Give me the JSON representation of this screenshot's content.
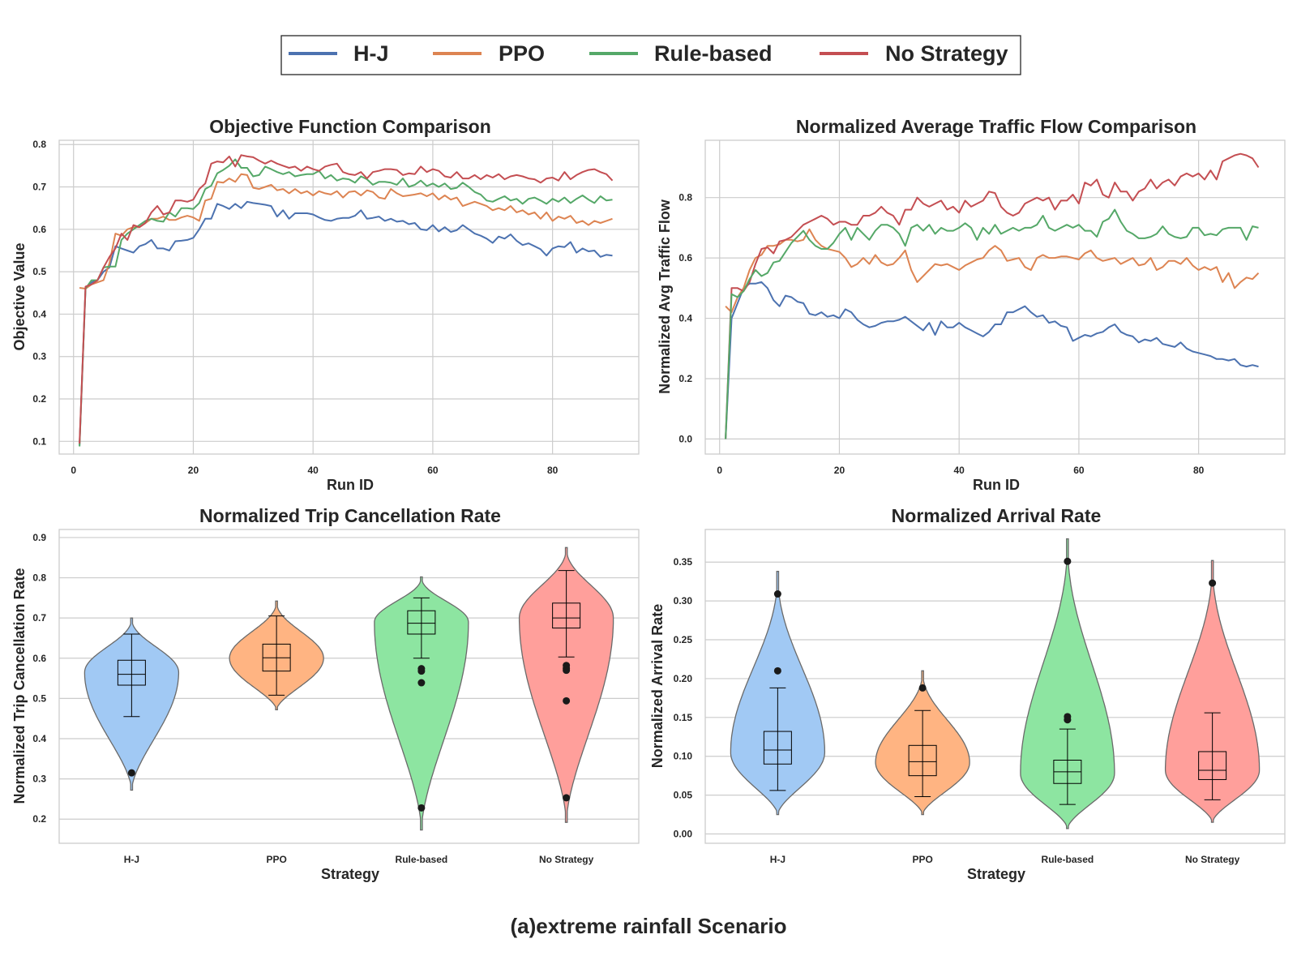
{
  "figure_caption": "(a)extreme rainfall Scenario",
  "legend": {
    "entries": [
      {
        "label": "H-J",
        "color": "#4c72b0"
      },
      {
        "label": "PPO",
        "color": "#dd8452"
      },
      {
        "label": "Rule-based",
        "color": "#55a868"
      },
      {
        "label": "No Strategy",
        "color": "#c44e52"
      }
    ]
  },
  "chart_data": [
    {
      "type": "line",
      "title": "Objective Function Comparison",
      "xlabel": "Run ID",
      "ylabel": "Objective Value",
      "xlim": [
        -2.4,
        94.4
      ],
      "ylim": [
        0.07,
        0.81
      ],
      "xticks": [
        0,
        20,
        40,
        60,
        80
      ],
      "yticks": [
        0.1,
        0.2,
        0.3,
        0.4,
        0.5,
        0.6,
        0.7,
        0.8
      ],
      "x_start": 1,
      "series": [
        {
          "name": "H-J",
          "color": "#4c72b0",
          "values": [
            0.09,
            0.46,
            0.475,
            0.48,
            0.5,
            0.51,
            0.56,
            0.555,
            0.55,
            0.545,
            0.56,
            0.565,
            0.575,
            0.555,
            0.555,
            0.55,
            0.572,
            0.573,
            0.575,
            0.58,
            0.6,
            0.625,
            0.625,
            0.66,
            0.655,
            0.648,
            0.66,
            0.65,
            0.665,
            0.662,
            0.66,
            0.658,
            0.655,
            0.63,
            0.645,
            0.625,
            0.638,
            0.638,
            0.638,
            0.635,
            0.628,
            0.622,
            0.62,
            0.625,
            0.627,
            0.627,
            0.632,
            0.645,
            0.625,
            0.627,
            0.63,
            0.62,
            0.625,
            0.618,
            0.62,
            0.612,
            0.615,
            0.6,
            0.598,
            0.61,
            0.595,
            0.605,
            0.594,
            0.598,
            0.61,
            0.6,
            0.59,
            0.585,
            0.578,
            0.568,
            0.583,
            0.578,
            0.588,
            0.573,
            0.563,
            0.567,
            0.56,
            0.553,
            0.538,
            0.555,
            0.56,
            0.558,
            0.57,
            0.545,
            0.555,
            0.548,
            0.55,
            0.535,
            0.54,
            0.538
          ]
        },
        {
          "name": "PPO",
          "color": "#dd8452",
          "values": [
            0.462,
            0.46,
            0.47,
            0.475,
            0.48,
            0.52,
            0.59,
            0.585,
            0.6,
            0.605,
            0.605,
            0.615,
            0.625,
            0.625,
            0.63,
            0.622,
            0.622,
            0.628,
            0.632,
            0.628,
            0.62,
            0.668,
            0.672,
            0.712,
            0.71,
            0.72,
            0.712,
            0.73,
            0.728,
            0.698,
            0.695,
            0.7,
            0.705,
            0.692,
            0.695,
            0.685,
            0.695,
            0.685,
            0.69,
            0.68,
            0.69,
            0.685,
            0.682,
            0.69,
            0.675,
            0.688,
            0.69,
            0.68,
            0.692,
            0.688,
            0.675,
            0.672,
            0.695,
            0.685,
            0.678,
            0.68,
            0.682,
            0.685,
            0.678,
            0.685,
            0.67,
            0.68,
            0.67,
            0.675,
            0.655,
            0.66,
            0.665,
            0.66,
            0.655,
            0.645,
            0.65,
            0.645,
            0.655,
            0.64,
            0.645,
            0.635,
            0.64,
            0.625,
            0.64,
            0.62,
            0.63,
            0.625,
            0.632,
            0.615,
            0.62,
            0.61,
            0.62,
            0.615,
            0.62,
            0.625
          ]
        },
        {
          "name": "Rule-based",
          "color": "#55a868",
          "values": [
            0.088,
            0.46,
            0.48,
            0.48,
            0.51,
            0.512,
            0.512,
            0.575,
            0.59,
            0.6,
            0.61,
            0.62,
            0.625,
            0.62,
            0.618,
            0.64,
            0.63,
            0.65,
            0.65,
            0.648,
            0.662,
            0.695,
            0.703,
            0.732,
            0.74,
            0.75,
            0.765,
            0.745,
            0.745,
            0.725,
            0.728,
            0.748,
            0.742,
            0.735,
            0.73,
            0.735,
            0.725,
            0.728,
            0.73,
            0.73,
            0.738,
            0.72,
            0.728,
            0.715,
            0.72,
            0.718,
            0.71,
            0.725,
            0.718,
            0.705,
            0.712,
            0.712,
            0.71,
            0.705,
            0.72,
            0.7,
            0.705,
            0.715,
            0.702,
            0.708,
            0.7,
            0.708,
            0.695,
            0.698,
            0.71,
            0.7,
            0.688,
            0.682,
            0.668,
            0.665,
            0.672,
            0.678,
            0.668,
            0.672,
            0.66,
            0.672,
            0.675,
            0.668,
            0.66,
            0.672,
            0.665,
            0.675,
            0.662,
            0.672,
            0.68,
            0.67,
            0.662,
            0.678,
            0.668,
            0.67
          ]
        },
        {
          "name": "No Strategy",
          "color": "#c44e52",
          "values": [
            0.095,
            0.465,
            0.47,
            0.48,
            0.51,
            0.535,
            0.555,
            0.59,
            0.575,
            0.61,
            0.605,
            0.615,
            0.64,
            0.655,
            0.635,
            0.64,
            0.668,
            0.668,
            0.665,
            0.67,
            0.695,
            0.708,
            0.755,
            0.76,
            0.758,
            0.772,
            0.748,
            0.775,
            0.772,
            0.77,
            0.762,
            0.755,
            0.762,
            0.755,
            0.75,
            0.745,
            0.748,
            0.738,
            0.748,
            0.742,
            0.738,
            0.748,
            0.752,
            0.755,
            0.735,
            0.73,
            0.728,
            0.735,
            0.72,
            0.735,
            0.738,
            0.742,
            0.742,
            0.74,
            0.728,
            0.732,
            0.73,
            0.748,
            0.735,
            0.742,
            0.738,
            0.725,
            0.722,
            0.735,
            0.72,
            0.72,
            0.728,
            0.718,
            0.728,
            0.722,
            0.73,
            0.718,
            0.725,
            0.728,
            0.725,
            0.72,
            0.718,
            0.71,
            0.72,
            0.722,
            0.715,
            0.735,
            0.718,
            0.728,
            0.735,
            0.74,
            0.742,
            0.735,
            0.73,
            0.715
          ]
        }
      ]
    },
    {
      "type": "line",
      "title": "Normalized Average Traffic Flow Comparison",
      "xlabel": "Run ID",
      "ylabel": "Normalized Avg Traffic Flow",
      "xlim": [
        -2.4,
        94.4
      ],
      "ylim": [
        -0.05,
        0.99
      ],
      "xticks": [
        0,
        20,
        40,
        60,
        80
      ],
      "yticks": [
        0.0,
        0.2,
        0.4,
        0.6,
        0.8
      ],
      "x_start": 1,
      "series": [
        {
          "name": "H-J",
          "color": "#4c72b0",
          "values": [
            0.0,
            0.4,
            0.45,
            0.5,
            0.515,
            0.515,
            0.52,
            0.5,
            0.46,
            0.44,
            0.475,
            0.47,
            0.455,
            0.45,
            0.415,
            0.41,
            0.42,
            0.405,
            0.41,
            0.4,
            0.43,
            0.42,
            0.395,
            0.38,
            0.37,
            0.375,
            0.385,
            0.39,
            0.39,
            0.395,
            0.405,
            0.39,
            0.375,
            0.36,
            0.385,
            0.345,
            0.39,
            0.37,
            0.37,
            0.385,
            0.37,
            0.36,
            0.35,
            0.34,
            0.355,
            0.38,
            0.38,
            0.42,
            0.42,
            0.43,
            0.44,
            0.42,
            0.405,
            0.41,
            0.385,
            0.39,
            0.375,
            0.37,
            0.325,
            0.335,
            0.345,
            0.34,
            0.35,
            0.355,
            0.37,
            0.38,
            0.355,
            0.345,
            0.34,
            0.32,
            0.33,
            0.325,
            0.335,
            0.315,
            0.31,
            0.305,
            0.32,
            0.3,
            0.29,
            0.285,
            0.28,
            0.275,
            0.265,
            0.265,
            0.26,
            0.265,
            0.245,
            0.24,
            0.245,
            0.24
          ]
        },
        {
          "name": "PPO",
          "color": "#dd8452",
          "values": [
            0.44,
            0.42,
            0.47,
            0.5,
            0.56,
            0.6,
            0.61,
            0.64,
            0.64,
            0.645,
            0.66,
            0.66,
            0.655,
            0.66,
            0.695,
            0.66,
            0.64,
            0.63,
            0.625,
            0.62,
            0.6,
            0.57,
            0.58,
            0.6,
            0.58,
            0.61,
            0.585,
            0.575,
            0.58,
            0.6,
            0.625,
            0.56,
            0.52,
            0.54,
            0.56,
            0.58,
            0.575,
            0.58,
            0.57,
            0.56,
            0.575,
            0.585,
            0.595,
            0.6,
            0.625,
            0.64,
            0.625,
            0.59,
            0.595,
            0.6,
            0.57,
            0.56,
            0.6,
            0.61,
            0.6,
            0.6,
            0.605,
            0.605,
            0.6,
            0.595,
            0.615,
            0.625,
            0.6,
            0.59,
            0.595,
            0.6,
            0.58,
            0.59,
            0.6,
            0.575,
            0.58,
            0.6,
            0.56,
            0.57,
            0.59,
            0.59,
            0.58,
            0.6,
            0.575,
            0.56,
            0.57,
            0.56,
            0.57,
            0.52,
            0.55,
            0.5,
            0.52,
            0.535,
            0.53,
            0.55
          ]
        },
        {
          "name": "No Strategy",
          "color": "#c44e52",
          "values": [
            0.0,
            0.5,
            0.5,
            0.49,
            0.52,
            0.58,
            0.63,
            0.635,
            0.615,
            0.655,
            0.66,
            0.67,
            0.69,
            0.71,
            0.72,
            0.73,
            0.74,
            0.73,
            0.71,
            0.72,
            0.72,
            0.71,
            0.71,
            0.74,
            0.74,
            0.75,
            0.77,
            0.75,
            0.74,
            0.71,
            0.76,
            0.76,
            0.8,
            0.78,
            0.77,
            0.78,
            0.79,
            0.76,
            0.77,
            0.75,
            0.79,
            0.77,
            0.78,
            0.79,
            0.82,
            0.815,
            0.77,
            0.75,
            0.74,
            0.75,
            0.78,
            0.79,
            0.8,
            0.79,
            0.8,
            0.76,
            0.79,
            0.79,
            0.81,
            0.78,
            0.85,
            0.84,
            0.86,
            0.81,
            0.8,
            0.85,
            0.82,
            0.82,
            0.79,
            0.82,
            0.83,
            0.86,
            0.83,
            0.85,
            0.86,
            0.84,
            0.87,
            0.88,
            0.87,
            0.88,
            0.86,
            0.89,
            0.86,
            0.92,
            0.93,
            0.94,
            0.945,
            0.94,
            0.93,
            0.9
          ]
        },
        {
          "name": "Rule-based",
          "color": "#55a868",
          "values": [
            0.0,
            0.48,
            0.47,
            0.49,
            0.53,
            0.56,
            0.54,
            0.55,
            0.585,
            0.59,
            0.62,
            0.65,
            0.67,
            0.69,
            0.66,
            0.64,
            0.63,
            0.63,
            0.65,
            0.68,
            0.7,
            0.66,
            0.7,
            0.68,
            0.66,
            0.69,
            0.71,
            0.71,
            0.7,
            0.68,
            0.64,
            0.7,
            0.71,
            0.69,
            0.71,
            0.68,
            0.7,
            0.69,
            0.69,
            0.7,
            0.715,
            0.7,
            0.66,
            0.7,
            0.68,
            0.71,
            0.68,
            0.69,
            0.7,
            0.69,
            0.7,
            0.7,
            0.71,
            0.74,
            0.7,
            0.69,
            0.7,
            0.71,
            0.7,
            0.71,
            0.69,
            0.69,
            0.67,
            0.72,
            0.73,
            0.76,
            0.72,
            0.69,
            0.68,
            0.665,
            0.665,
            0.67,
            0.68,
            0.705,
            0.68,
            0.67,
            0.665,
            0.67,
            0.7,
            0.7,
            0.675,
            0.68,
            0.675,
            0.695,
            0.7,
            0.7,
            0.7,
            0.66,
            0.705,
            0.7
          ]
        }
      ]
    },
    {
      "type": "violin",
      "title": "Normalized Trip Cancellation Rate",
      "xlabel": "Strategy",
      "ylabel": "Normalized Trip Cancellation Rate",
      "categories": [
        "H-J",
        "PPO",
        "Rule-based",
        "No Strategy"
      ],
      "ylim": [
        0.14,
        0.92
      ],
      "yticks": [
        0.2,
        0.3,
        0.4,
        0.5,
        0.6,
        0.7,
        0.8,
        0.9
      ],
      "groups": [
        {
          "name": "H-J",
          "color": "#a1c9f4",
          "range": [
            0.272,
            0.7
          ],
          "peak": 0.565,
          "q1": 0.533,
          "median": 0.56,
          "q3": 0.595,
          "whisker_low": 0.455,
          "whisker_high": 0.66,
          "outliers": [
            0.315
          ]
        },
        {
          "name": "PPO",
          "color": "#ffb482",
          "range": [
            0.472,
            0.742
          ],
          "peak": 0.6,
          "q1": 0.568,
          "median": 0.601,
          "q3": 0.635,
          "whisker_low": 0.508,
          "whisker_high": 0.705,
          "outliers": []
        },
        {
          "name": "Rule-based",
          "color": "#8de5a1",
          "range": [
            0.173,
            0.802
          ],
          "peak": 0.69,
          "q1": 0.66,
          "median": 0.687,
          "q3": 0.718,
          "whisker_low": 0.6,
          "whisker_high": 0.75,
          "outliers": [
            0.574,
            0.568,
            0.539,
            0.228
          ]
        },
        {
          "name": "No Strategy",
          "color": "#ff9f9b",
          "range": [
            0.192,
            0.875
          ],
          "peak": 0.7,
          "q1": 0.675,
          "median": 0.7,
          "q3": 0.737,
          "whisker_low": 0.603,
          "whisker_high": 0.818,
          "outliers": [
            0.582,
            0.575,
            0.57,
            0.494,
            0.253
          ]
        }
      ]
    },
    {
      "type": "violin",
      "title": "Normalized Arrival Rate",
      "xlabel": "Strategy",
      "ylabel": "Normalized Arrival Rate",
      "categories": [
        "H-J",
        "PPO",
        "Rule-based",
        "No Strategy"
      ],
      "ylim": [
        -0.012,
        0.392
      ],
      "yticks": [
        0.0,
        0.05,
        0.1,
        0.15,
        0.2,
        0.25,
        0.3,
        0.35
      ],
      "ytick_labels": [
        "0.00",
        "0.05",
        "0.10",
        "0.15",
        "0.20",
        "0.25",
        "0.30",
        "0.35"
      ],
      "groups": [
        {
          "name": "H-J",
          "color": "#a1c9f4",
          "range": [
            0.025,
            0.338
          ],
          "peak": 0.105,
          "q1": 0.09,
          "median": 0.108,
          "q3": 0.132,
          "whisker_low": 0.056,
          "whisker_high": 0.188,
          "outliers": [
            0.309,
            0.21
          ]
        },
        {
          "name": "PPO",
          "color": "#ffb482",
          "range": [
            0.025,
            0.21
          ],
          "peak": 0.092,
          "q1": 0.075,
          "median": 0.093,
          "q3": 0.114,
          "whisker_low": 0.048,
          "whisker_high": 0.159,
          "outliers": [
            0.188
          ]
        },
        {
          "name": "Rule-based",
          "color": "#8de5a1",
          "range": [
            0.007,
            0.38
          ],
          "peak": 0.078,
          "q1": 0.065,
          "median": 0.08,
          "q3": 0.095,
          "whisker_low": 0.038,
          "whisker_high": 0.135,
          "outliers": [
            0.351,
            0.151,
            0.147
          ]
        },
        {
          "name": "No Strategy",
          "color": "#ff9f9b",
          "range": [
            0.015,
            0.352
          ],
          "peak": 0.082,
          "q1": 0.07,
          "median": 0.082,
          "q3": 0.106,
          "whisker_low": 0.044,
          "whisker_high": 0.156,
          "outliers": [
            0.323
          ]
        }
      ]
    }
  ]
}
